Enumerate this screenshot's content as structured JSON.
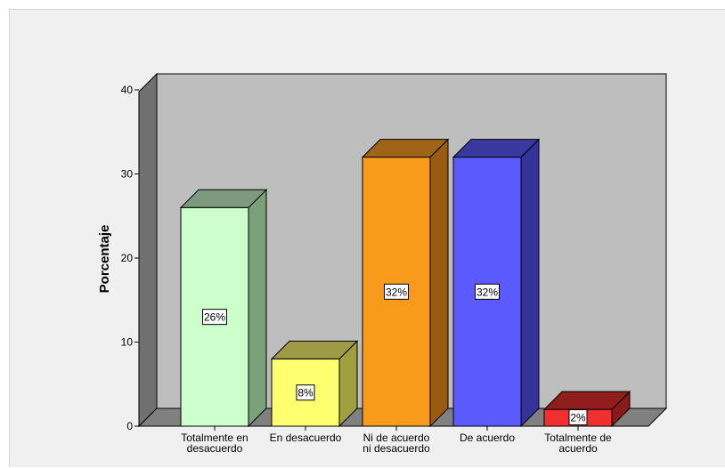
{
  "chart_data": {
    "type": "bar",
    "categories": [
      [
        "Totalmente en",
        "desacuerdo"
      ],
      [
        "En desacuerdo"
      ],
      [
        "Ni de acuerdo",
        "ni desacuerdo"
      ],
      [
        "De acuerdo"
      ],
      [
        "Totalmente de",
        "acuerdo"
      ]
    ],
    "values": [
      26,
      8,
      32,
      32,
      2
    ],
    "data_labels": [
      "26%",
      "8%",
      "32%",
      "32%",
      "2%"
    ],
    "colors": [
      {
        "front": "#ccffcc",
        "side": "#7aa07a",
        "top": "#7e9a7e"
      },
      {
        "front": "#ffff70",
        "side": "#a0a040",
        "top": "#9e9a45"
      },
      {
        "front": "#f89a1c",
        "side": "#9a5a10",
        "top": "#a06418"
      },
      {
        "front": "#5a5aff",
        "side": "#33339a",
        "top": "#38389e"
      },
      {
        "front": "#f03030",
        "side": "#8a1a1a",
        "top": "#901c1c"
      }
    ],
    "ylabel": "Porcentaje",
    "xlabel": "",
    "title": "",
    "ylim": [
      0,
      40
    ],
    "yticks": [
      0,
      10,
      20,
      30,
      40
    ],
    "grid": false,
    "style": "3d",
    "wall_color": "#bebebe",
    "floor_color": "#808080",
    "side_wall_color": "#707070"
  }
}
